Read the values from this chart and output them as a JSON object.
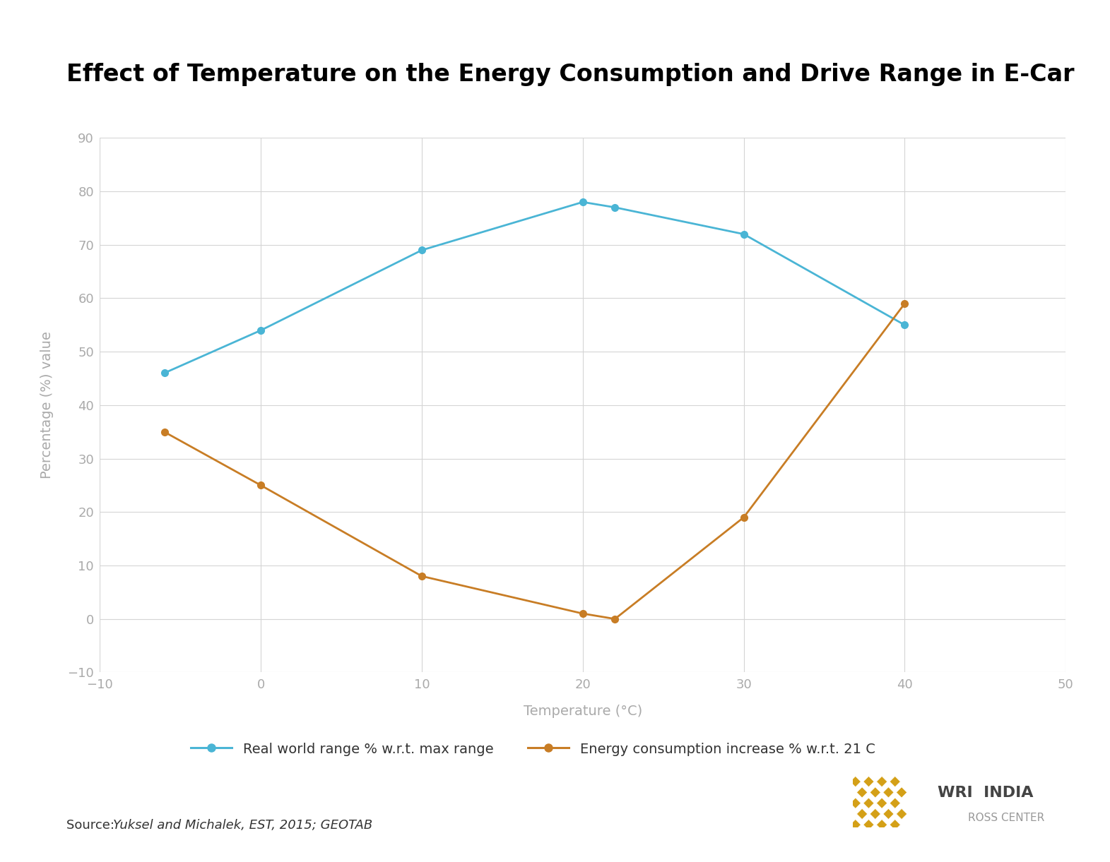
{
  "title": "Effect of Temperature on the Energy Consumption and Drive Range in E-Car",
  "xlabel": "Temperature (°C)",
  "ylabel": "Percentage (%) value",
  "xlim": [
    -10,
    50
  ],
  "ylim": [
    -10,
    90
  ],
  "xticks": [
    -10,
    0,
    10,
    20,
    30,
    40,
    50
  ],
  "yticks": [
    -10,
    0,
    10,
    20,
    30,
    40,
    50,
    60,
    70,
    80,
    90
  ],
  "blue_x": [
    -6,
    0,
    10,
    20,
    22,
    30,
    40
  ],
  "blue_y": [
    46,
    54,
    69,
    78,
    77,
    72,
    55
  ],
  "orange_x": [
    -6,
    0,
    10,
    20,
    22,
    30,
    40
  ],
  "orange_y": [
    35,
    25,
    8,
    1,
    0,
    19,
    59
  ],
  "blue_color": "#4ab5d5",
  "orange_color": "#c87d25",
  "blue_label": "Real world range % w.r.t. max range",
  "orange_label": "Energy consumption increase % w.r.t. 21 C",
  "source_label": "Source: ",
  "source_italic": "Yuksel and Michalek, EST, 2015; GEOTAB",
  "background_color": "#ffffff",
  "grid_color": "#d5d5d5",
  "tick_label_color": "#aaaaaa",
  "axis_label_color": "#aaaaaa",
  "title_fontsize": 24,
  "axis_label_fontsize": 14,
  "tick_fontsize": 13,
  "legend_fontsize": 14,
  "source_fontsize": 13,
  "wri_text1": "WRI  INDIA",
  "wri_text2": "ROSS CENTER",
  "wri_color1": "#555555",
  "wri_color2": "#aaaaaa",
  "wri_line_color": "#c87d25"
}
